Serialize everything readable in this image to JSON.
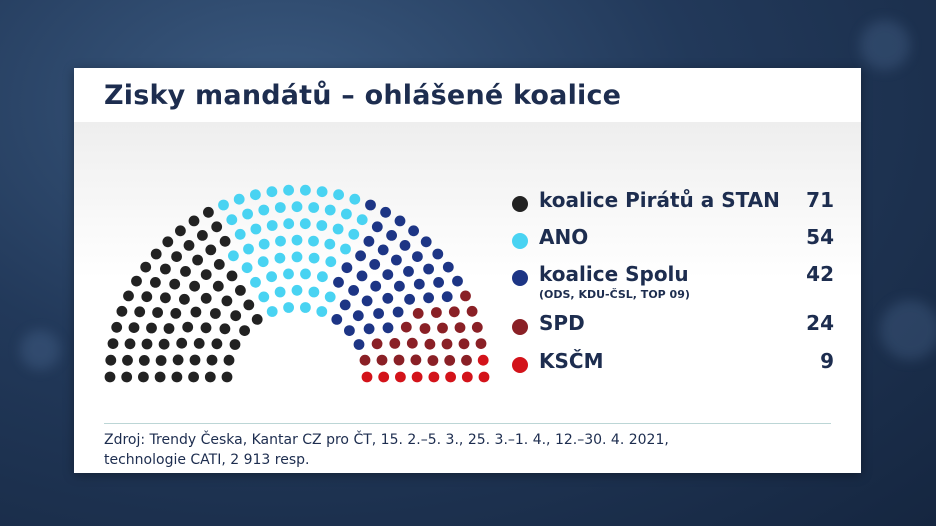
{
  "colors": {
    "pirati_stan": "#222222",
    "ano": "#49d3f2",
    "spolu": "#1d3585",
    "spd": "#8a2026",
    "kscm": "#d3131a"
  },
  "header": {
    "title": "Zisky mandátů – ohlášené koalice"
  },
  "chart_data": {
    "type": "parliament",
    "title": "Zisky mandátů – ohlášené koalice",
    "total_seats": 200,
    "series": [
      {
        "name": "koalice Pirátů a STAN",
        "value": 71,
        "color": "#222222"
      },
      {
        "name": "ANO",
        "value": 54,
        "color": "#49d3f2"
      },
      {
        "name": "koalice Spolu",
        "note": "(ODS, KDU-ČSL, TOP 09)",
        "value": 42,
        "color": "#1d3585"
      },
      {
        "name": "SPD",
        "value": 24,
        "color": "#8a2026"
      },
      {
        "name": "KSČM",
        "value": 9,
        "color": "#d3131a"
      }
    ],
    "legend": "right"
  },
  "legend": {
    "items": [
      {
        "label": "koalice Pirátů a STAN",
        "value": "71"
      },
      {
        "label": "ANO",
        "value": "54"
      },
      {
        "label": "koalice Spolu",
        "sub": "(ODS, KDU-ČSL, TOP 09)",
        "value": "42"
      },
      {
        "label": "SPD",
        "value": "24"
      },
      {
        "label": "KSČM",
        "value": "9"
      }
    ]
  },
  "footer": {
    "source_line1": "Zdroj: Trendy Česka, Kantar CZ pro ČT, 15. 2.–5. 3., 25. 3.–1. 4., 12.–30. 4. 2021,",
    "source_line2": "technologie CATI, 2 913 resp."
  }
}
